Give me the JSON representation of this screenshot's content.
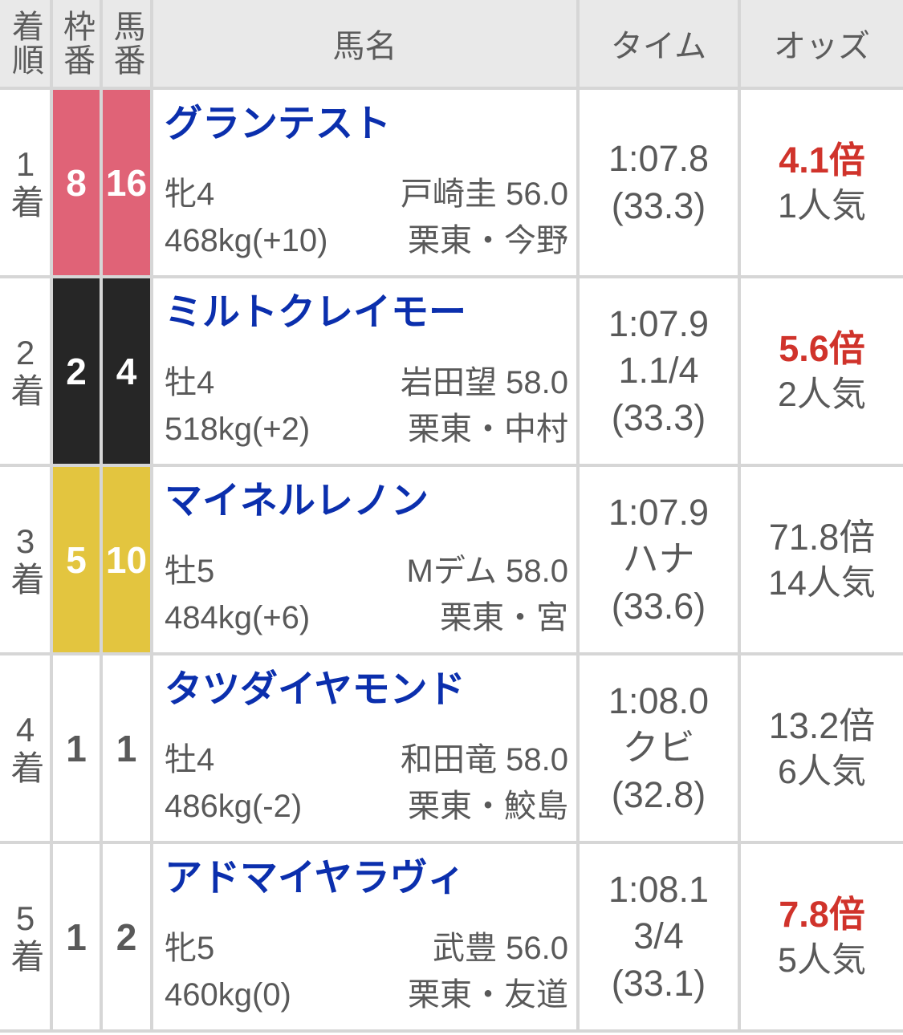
{
  "colors": {
    "link_blue": "#0b2fad",
    "highlight_red": "#d0332b",
    "text_gray": "#595959",
    "header_bg": "#e9e9e9",
    "grid_line": "#d6d6d6",
    "frame_pink": "#e06377",
    "frame_black": "#262626",
    "frame_yellow": "#e3c53f",
    "frame_white": "#ffffff"
  },
  "table": {
    "headers": {
      "pos": "着順",
      "frame": "枠番",
      "num": "馬番",
      "name": "馬名",
      "time": "タイム",
      "odds": "オッズ"
    },
    "rows": [
      {
        "pos": "1着",
        "frame": "8",
        "num": "16",
        "frame_bg": "#e06377",
        "frame_fg": "#ffffff",
        "name": "グランテスト",
        "sex_age": "牝4",
        "jockey": "戸崎圭 56.0",
        "weight": "468kg(+10)",
        "trainer": "栗東・今野",
        "time": "1:07.8",
        "margin": "",
        "last3f": "(33.3)",
        "odds": "4.1倍",
        "odds_highlight": true,
        "popularity": "1人気"
      },
      {
        "pos": "2着",
        "frame": "2",
        "num": "4",
        "frame_bg": "#262626",
        "frame_fg": "#ffffff",
        "name": "ミルトクレイモー",
        "sex_age": "牡4",
        "jockey": "岩田望 58.0",
        "weight": "518kg(+2)",
        "trainer": "栗東・中村",
        "time": "1:07.9",
        "margin": "1.1/4",
        "last3f": "(33.3)",
        "odds": "5.6倍",
        "odds_highlight": true,
        "popularity": "2人気"
      },
      {
        "pos": "3着",
        "frame": "5",
        "num": "10",
        "frame_bg": "#e3c53f",
        "frame_fg": "#ffffff",
        "name": "マイネルレノン",
        "sex_age": "牡5",
        "jockey": "Mデム 58.0",
        "weight": "484kg(+6)",
        "trainer": "栗東・宮",
        "time": "1:07.9",
        "margin": "ハナ",
        "last3f": "(33.6)",
        "odds": "71.8倍",
        "odds_highlight": false,
        "popularity": "14人気"
      },
      {
        "pos": "4着",
        "frame": "1",
        "num": "1",
        "frame_bg": "#ffffff",
        "frame_fg": "#595959",
        "name": "タツダイヤモンド",
        "sex_age": "牡4",
        "jockey": "和田竜 58.0",
        "weight": "486kg(-2)",
        "trainer": "栗東・鮫島",
        "time": "1:08.0",
        "margin": "クビ",
        "last3f": "(32.8)",
        "odds": "13.2倍",
        "odds_highlight": false,
        "popularity": "6人気"
      },
      {
        "pos": "5着",
        "frame": "1",
        "num": "2",
        "frame_bg": "#ffffff",
        "frame_fg": "#595959",
        "name": "アドマイヤラヴィ",
        "sex_age": "牝5",
        "jockey": "武豊 56.0",
        "weight": "460kg(0)",
        "trainer": "栗東・友道",
        "time": "1:08.1",
        "margin": "3/4",
        "last3f": "(33.1)",
        "odds": "7.8倍",
        "odds_highlight": true,
        "popularity": "5人気"
      }
    ]
  }
}
